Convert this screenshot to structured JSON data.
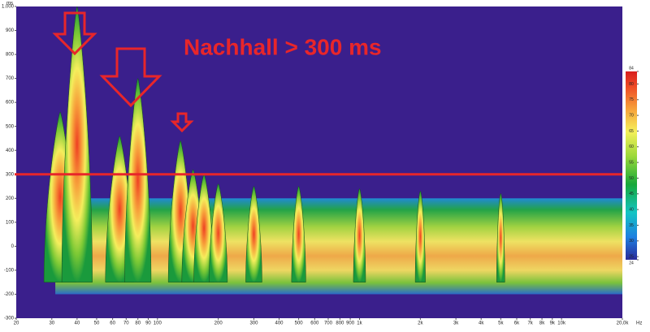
{
  "chart_data": {
    "type": "spectrogram",
    "annotation": "Nachhall > 300 ms",
    "y_unit": "ms",
    "x_unit": "Hz",
    "log_x": true,
    "xlim": [
      20,
      20000
    ],
    "ylim": [
      -300,
      1000
    ],
    "threshold": 300,
    "threshold_color": "#e8262a",
    "background": "#3a1f8c",
    "xticks": [
      20,
      30,
      40,
      50,
      60,
      70,
      80,
      90,
      100,
      200,
      300,
      400,
      500,
      600,
      700,
      800,
      900,
      {
        "value": 1000,
        "label": "1k"
      },
      {
        "value": 2000,
        "label": "2k"
      },
      {
        "value": 3000,
        "label": "3k"
      },
      {
        "value": 4000,
        "label": "4k"
      },
      {
        "value": 5000,
        "label": "5k"
      },
      {
        "value": 6000,
        "label": "6k"
      },
      {
        "value": 7000,
        "label": "7k"
      },
      {
        "value": 8000,
        "label": "8k"
      },
      {
        "value": 9000,
        "label": "9k"
      },
      {
        "value": 10000,
        "label": "10k"
      },
      {
        "value": 20000,
        "label": "20,0k"
      }
    ],
    "yticks": [
      -300,
      -200,
      -100,
      0,
      100,
      200,
      300,
      400,
      500,
      600,
      700,
      800,
      900,
      {
        "value": 1000,
        "label": "1.000"
      }
    ],
    "x": [
      33,
      40,
      65,
      80,
      130,
      150,
      170,
      200,
      300,
      500,
      1000,
      2000,
      5000
    ],
    "values": [
      560,
      1000,
      460,
      700,
      440,
      320,
      300,
      260,
      250,
      250,
      240,
      230,
      220
    ],
    "colorbar": {
      "lim": [
        24,
        84
      ],
      "ticks": [
        24,
        25,
        30,
        35,
        40,
        45,
        50,
        55,
        60,
        65,
        70,
        75,
        80,
        84
      ]
    }
  }
}
